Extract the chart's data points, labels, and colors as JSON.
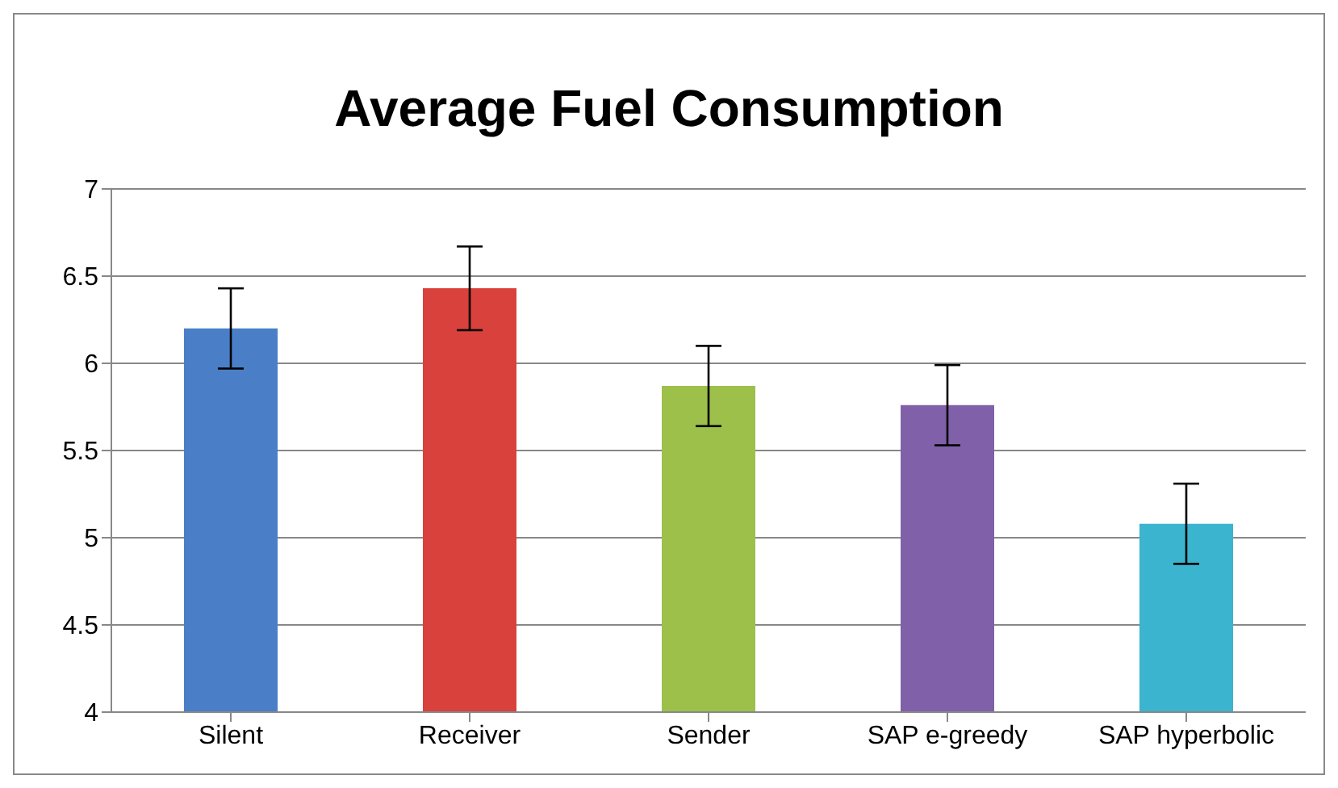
{
  "chart_data": {
    "type": "bar",
    "title": "Average Fuel Consumption",
    "categories": [
      "Silent",
      "Receiver",
      "Sender",
      "SAP e-greedy",
      "SAP hyperbolic"
    ],
    "values": [
      6.2,
      6.43,
      5.87,
      5.76,
      5.08
    ],
    "errors": [
      0.23,
      0.24,
      0.23,
      0.23,
      0.23
    ],
    "colors": [
      "#4a7fc8",
      "#d9413c",
      "#9cc04a",
      "#8060a8",
      "#3ab4cf"
    ],
    "ylim": [
      4,
      7
    ],
    "yticks": [
      4,
      4.5,
      5,
      5.5,
      6,
      6.5,
      7
    ],
    "grid": "y"
  }
}
